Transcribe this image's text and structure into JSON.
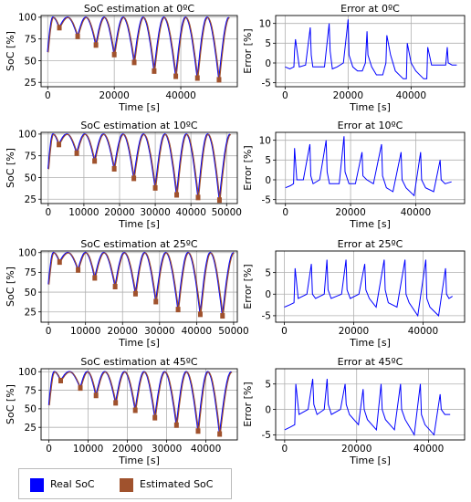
{
  "colors": {
    "real": "#0000ff",
    "estimated": "#a0522d",
    "grid": "#b0b0b0"
  },
  "legend": {
    "real": "Real SoC",
    "estimated": "Estimated SoC"
  },
  "chart_data": [
    {
      "type": "line",
      "title": "SoC estimation at 0ºC",
      "xlabel": "Time [s]",
      "ylabel": "SoC [%]",
      "xlim": [
        -2000,
        57000
      ],
      "ylim": [
        20,
        102
      ],
      "xticks": [
        0,
        20000,
        40000
      ],
      "yticks": [
        25,
        50,
        75,
        100
      ],
      "grid": true,
      "cycles": [
        [
          3500,
          88
        ],
        [
          9000,
          78
        ],
        [
          14500,
          68
        ],
        [
          20000,
          57
        ],
        [
          26000,
          48
        ],
        [
          32000,
          38
        ],
        [
          38500,
          32
        ],
        [
          45000,
          30
        ],
        [
          51500,
          28
        ]
      ],
      "start": 60
    },
    {
      "type": "line",
      "title": "Error at 0ºC",
      "xlabel": "Time [s]",
      "ylabel": "Error [%]",
      "xlim": [
        -3000,
        57000
      ],
      "ylim": [
        -6,
        12
      ],
      "xticks": [
        0,
        20000,
        40000
      ],
      "yticks": [
        -5,
        0,
        5,
        10
      ],
      "grid": true,
      "x": [
        0,
        1500,
        2800,
        3000,
        3300,
        4500,
        6500,
        8000,
        8300,
        8800,
        10500,
        12500,
        14000,
        14300,
        15000,
        16500,
        18500,
        20000,
        20300,
        21500,
        23000,
        24500,
        25500,
        26000,
        26300,
        27500,
        29000,
        31000,
        32000,
        32300,
        33500,
        35000,
        37500,
        38500,
        38800,
        40000,
        41500,
        44000,
        45000,
        45300,
        46500,
        48000,
        51000,
        51500,
        51800,
        53000,
        54500
      ],
      "y": [
        -1,
        -1.5,
        -1,
        3,
        6,
        -1,
        -0.5,
        9,
        2,
        -1,
        -1,
        -1,
        10,
        3,
        -1.5,
        -1,
        0,
        11,
        2,
        -1,
        -2,
        -2,
        0,
        8,
        2,
        -1,
        -3,
        -3,
        0,
        7,
        2,
        -2,
        -4,
        -4,
        5,
        0,
        -2,
        -4,
        -4,
        4,
        -0.5,
        -0.5,
        -0.5,
        4,
        0,
        -0.5,
        -0.5
      ]
    },
    {
      "type": "line",
      "title": "SoC estimation at 10ºC",
      "xlabel": "Time [s]",
      "ylabel": "SoC [%]",
      "xlim": [
        -2000,
        53000
      ],
      "ylim": [
        20,
        102
      ],
      "xticks": [
        0,
        10000,
        20000,
        30000,
        40000,
        50000
      ],
      "yticks": [
        25,
        50,
        75,
        100
      ],
      "grid": true,
      "cycles": [
        [
          3000,
          88
        ],
        [
          8000,
          78
        ],
        [
          13000,
          69
        ],
        [
          18500,
          60
        ],
        [
          24000,
          49
        ],
        [
          30000,
          38
        ],
        [
          36000,
          30
        ],
        [
          42000,
          27
        ],
        [
          48000,
          24
        ]
      ],
      "start": 60
    },
    {
      "type": "line",
      "title": "Error at 10ºC",
      "xlabel": "Time [s]",
      "ylabel": "Error [%]",
      "xlim": [
        -3000,
        55000
      ],
      "ylim": [
        -6,
        12
      ],
      "xticks": [
        0,
        20000,
        40000
      ],
      "yticks": [
        -5,
        0,
        5,
        10
      ],
      "grid": true,
      "x": [
        0,
        1500,
        2500,
        2800,
        3500,
        5500,
        7500,
        7800,
        8500,
        10500,
        12500,
        12800,
        13500,
        16500,
        18000,
        18300,
        19500,
        21500,
        23500,
        23800,
        25000,
        27000,
        29500,
        29800,
        31000,
        33000,
        35500,
        35800,
        37000,
        39500,
        41500,
        41800,
        43000,
        45500,
        47500,
        47800,
        49000,
        51000
      ],
      "y": [
        -2,
        -1.5,
        -1,
        8,
        0,
        0,
        9,
        1,
        -1,
        0,
        10,
        2,
        -1,
        -1,
        11,
        2,
        -1,
        -1,
        7,
        1,
        0,
        -1,
        9,
        1,
        -2,
        -3,
        7,
        0,
        -2,
        -4,
        7,
        0,
        -2,
        -3,
        5,
        0,
        -1,
        -0.5
      ]
    },
    {
      "type": "line",
      "title": "SoC estimation at 25ºC",
      "xlabel": "Time [s]",
      "ylabel": "SoC [%]",
      "xlim": [
        -2000,
        51000
      ],
      "ylim": [
        12,
        102
      ],
      "xticks": [
        0,
        10000,
        20000,
        30000,
        40000,
        50000
      ],
      "yticks": [
        25,
        50,
        75,
        100
      ],
      "grid": true,
      "cycles": [
        [
          3000,
          88
        ],
        [
          8000,
          78
        ],
        [
          12500,
          68
        ],
        [
          18000,
          57
        ],
        [
          23500,
          48
        ],
        [
          29000,
          38
        ],
        [
          35000,
          28
        ],
        [
          41000,
          22
        ],
        [
          47000,
          20
        ]
      ],
      "start": 60
    },
    {
      "type": "line",
      "title": "Error at 25ºC",
      "xlabel": "Time [s]",
      "ylabel": "Error [%]",
      "xlim": [
        -2500,
        52000
      ],
      "ylim": [
        -6.5,
        10
      ],
      "xticks": [
        0,
        20000,
        40000
      ],
      "yticks": [
        -5,
        0,
        5
      ],
      "grid": true,
      "x": [
        0,
        1500,
        2800,
        3100,
        4000,
        6500,
        7800,
        8100,
        9000,
        11500,
        12300,
        12600,
        13500,
        16500,
        17800,
        18100,
        19000,
        21500,
        23200,
        23500,
        24500,
        26500,
        28800,
        29100,
        30000,
        32500,
        34800,
        35100,
        36000,
        38500,
        40800,
        41100,
        42000,
        44500,
        46500,
        46800,
        47500,
        48500
      ],
      "y": [
        -3,
        -2.5,
        -2,
        6,
        -1,
        0,
        7,
        0,
        -1,
        0,
        8,
        1,
        -1,
        0,
        8,
        1,
        -1,
        0,
        7,
        1,
        -1,
        -3,
        8,
        1,
        -2,
        -3,
        8,
        0,
        -2,
        -5,
        8,
        -1,
        -3,
        -5,
        6,
        0,
        -1,
        -0.5
      ]
    },
    {
      "type": "line",
      "title": "SoC estimation at 45ºC",
      "xlabel": "Time [s]",
      "ylabel": "SoC [%]",
      "xlim": [
        -2000,
        48000
      ],
      "ylim": [
        8,
        104
      ],
      "xticks": [
        0,
        10000,
        20000,
        30000,
        40000
      ],
      "yticks": [
        25,
        50,
        75,
        100
      ],
      "grid": true,
      "cycles": [
        [
          3000,
          88
        ],
        [
          8000,
          78
        ],
        [
          12000,
          68
        ],
        [
          17000,
          58
        ],
        [
          22000,
          48
        ],
        [
          27000,
          38
        ],
        [
          32500,
          28
        ],
        [
          38000,
          20
        ],
        [
          43500,
          16
        ]
      ],
      "start": 55
    },
    {
      "type": "line",
      "title": "Error at 45ºC",
      "xlabel": "Time [s]",
      "ylabel": "Error [%]",
      "xlim": [
        -2500,
        50000
      ],
      "ylim": [
        -6,
        8
      ],
      "xticks": [
        0,
        20000,
        40000
      ],
      "yticks": [
        -5,
        0,
        5
      ],
      "grid": true,
      "x": [
        0,
        1500,
        2800,
        3100,
        4000,
        6500,
        7800,
        8100,
        9000,
        11000,
        11800,
        12100,
        13000,
        15500,
        16800,
        17100,
        18000,
        20500,
        21800,
        22100,
        23000,
        25500,
        26800,
        27100,
        28000,
        30500,
        32200,
        32500,
        33500,
        36000,
        37700,
        38000,
        39000,
        41500,
        43200,
        43500,
        44500,
        46000
      ],
      "y": [
        -4,
        -3.5,
        -3,
        5,
        -1,
        0,
        6,
        1,
        -1,
        0,
        6,
        1,
        -1,
        0,
        5,
        1,
        -1,
        -3,
        4,
        0,
        -2,
        -4,
        5,
        0,
        -2,
        -4,
        5,
        0,
        -2,
        -5,
        5,
        -1,
        -3,
        -5,
        3,
        0,
        -1,
        -1
      ]
    }
  ]
}
